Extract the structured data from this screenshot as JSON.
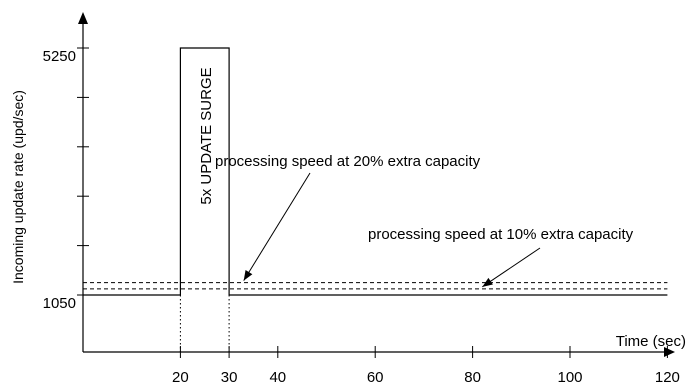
{
  "chart_data": {
    "type": "line",
    "xlabel": "Time (sec)",
    "ylabel": "Incoming update rate (upd/sec)",
    "x_ticks": [
      20,
      30,
      40,
      60,
      80,
      100,
      120
    ],
    "y_ticks": [
      1050,
      5250
    ],
    "xlim": [
      0,
      127
    ],
    "ylim": [
      0,
      6800
    ],
    "series": [
      {
        "x": [
          0,
          20,
          20,
          30,
          30,
          120
        ],
        "y": [
          1050,
          1050,
          5250,
          5250,
          1050,
          1050
        ]
      }
    ],
    "reference_lines": [
      {
        "label": "processing speed at 10% extra capacity",
        "y": 1155
      },
      {
        "label": "processing speed at 20% extra capacity",
        "y": 1260
      }
    ],
    "annotations": [
      {
        "text": "5x UPDATE SURGE",
        "x_range": [
          20,
          30
        ]
      }
    ]
  }
}
